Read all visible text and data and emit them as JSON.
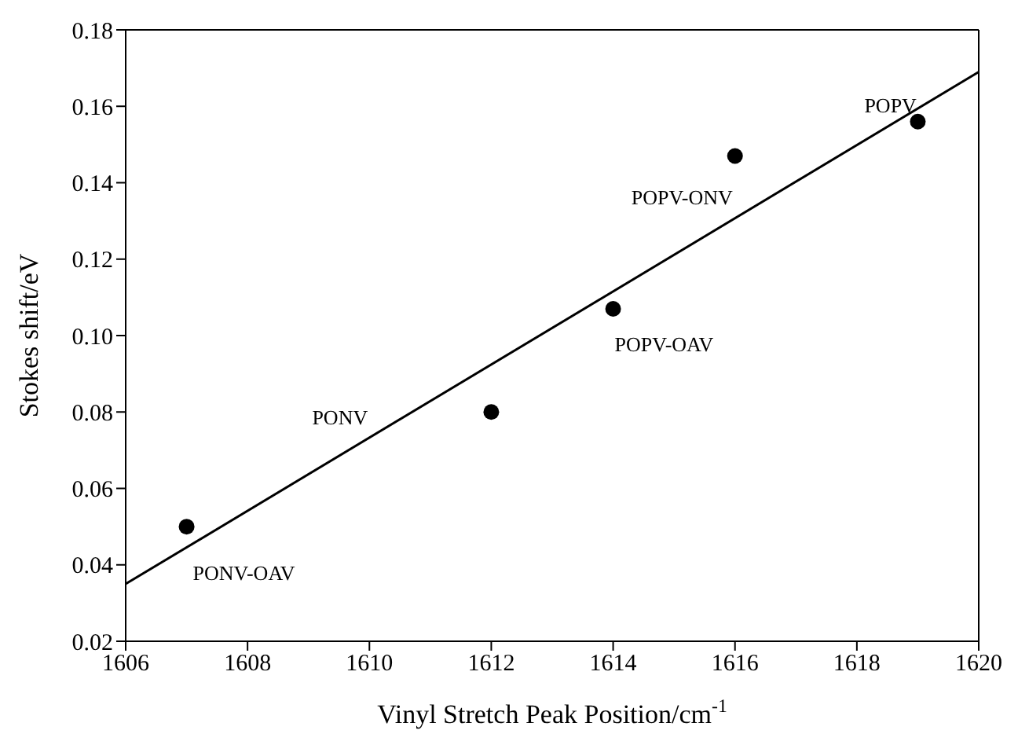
{
  "chart_data": {
    "type": "scatter",
    "xlabel": "Vinyl Stretch Peak Position/cm$^{-1}$",
    "ylabel": "Stokes shift/eV",
    "series": [
      {
        "color": "#000000",
        "marker": "circle",
        "x": [
          1607,
          1612,
          1614,
          1616,
          1619
        ],
        "values": [
          0.05,
          0.08,
          0.107,
          0.147,
          0.156
        ]
      },
      {
        "type": "line",
        "color": "#000000",
        "marker": "none",
        "x": [
          1606,
          1620
        ],
        "values": [
          0.035,
          0.169
        ]
      }
    ],
    "xlim": [
      1606,
      1620
    ],
    "xticks": [
      1606,
      1608,
      1610,
      1612,
      1614,
      1616,
      1618,
      1620
    ],
    "ylim": [
      0.02,
      0.18
    ],
    "yticks": [
      {
        "value": 0.02,
        "label": "0.02"
      },
      {
        "value": 0.04,
        "label": "0.04"
      },
      {
        "value": 0.06,
        "label": "0.06"
      },
      {
        "value": 0.08,
        "label": "0.08"
      },
      {
        "value": 0.1,
        "label": "0.10"
      },
      {
        "value": 0.12,
        "label": "0.12"
      },
      {
        "value": 0.14,
        "label": "0.14"
      },
      {
        "value": 0.16,
        "label": "0.16"
      },
      {
        "value": 0.18,
        "label": "0.18"
      }
    ],
    "grid": false,
    "annotations": [
      "PONV-OAV",
      "PONV",
      "POPV-OAV",
      "POPV-ONV",
      "POPV"
    ]
  }
}
